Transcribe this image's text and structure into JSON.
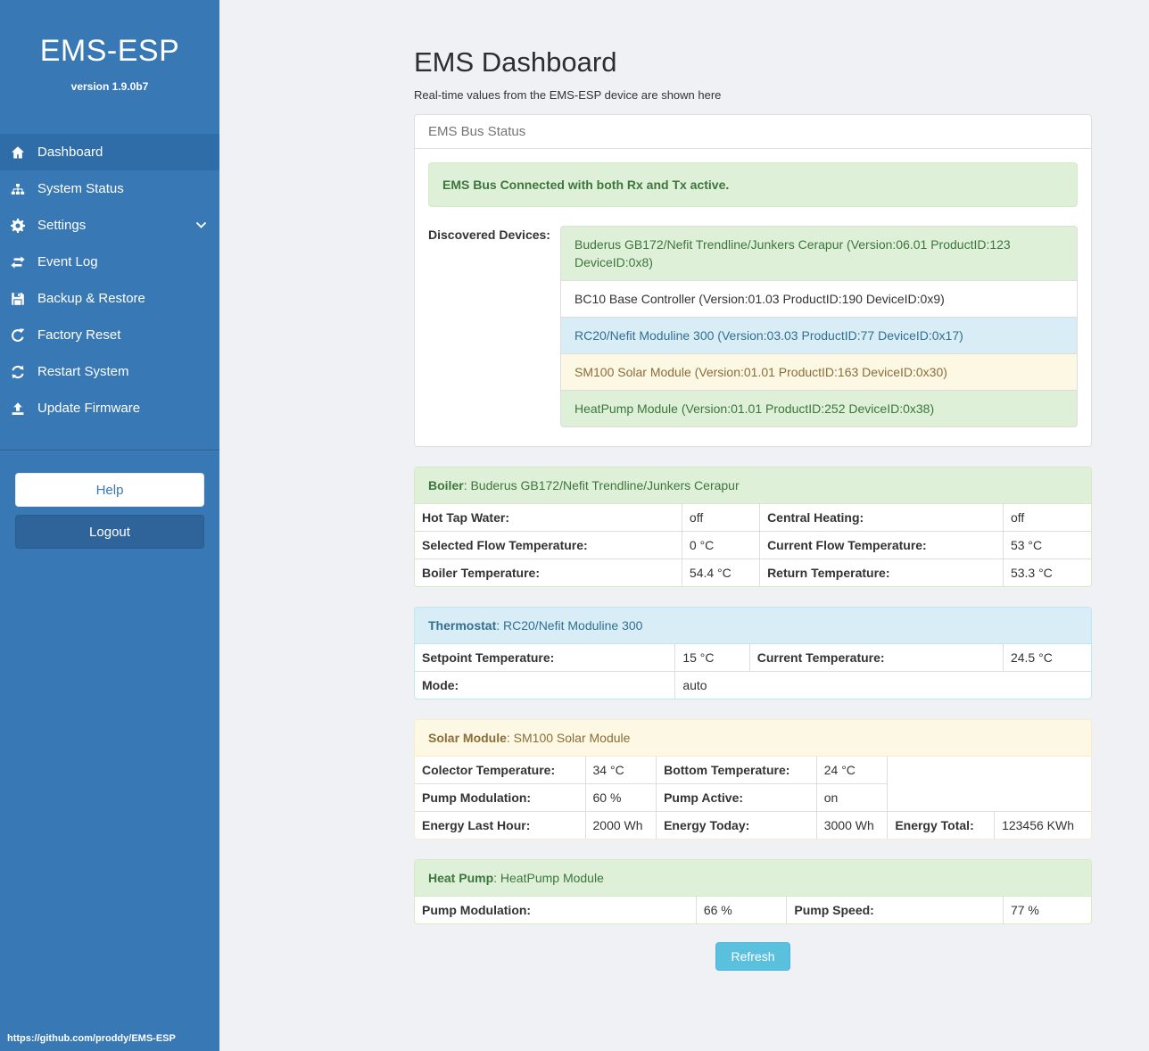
{
  "sidebar": {
    "brand": "EMS-ESP",
    "version": "version 1.9.0b7",
    "items": [
      {
        "label": "Dashboard",
        "icon": "home-icon",
        "active": true
      },
      {
        "label": "System Status",
        "icon": "system-status-icon",
        "active": false
      },
      {
        "label": "Settings",
        "icon": "gear-icon",
        "active": false,
        "chevron": true
      },
      {
        "label": "Event Log",
        "icon": "exchange-icon",
        "active": false
      },
      {
        "label": "Backup & Restore",
        "icon": "save-icon",
        "active": false
      },
      {
        "label": "Factory Reset",
        "icon": "repeat-icon",
        "active": false
      },
      {
        "label": "Restart System",
        "icon": "refresh-icon",
        "active": false
      },
      {
        "label": "Update Firmware",
        "icon": "upload-icon",
        "active": false
      }
    ],
    "help_label": "Help",
    "logout_label": "Logout",
    "footer_link": "https://github.com/proddy/EMS-ESP"
  },
  "header": {
    "title": "EMS Dashboard",
    "subtitle": "Real-time values from the EMS-ESP device are shown here"
  },
  "bus_panel": {
    "heading": "EMS Bus Status",
    "alert": "EMS Bus Connected with both Rx and Tx active.",
    "devices_label": "Discovered Devices:",
    "devices": [
      {
        "text": "Buderus GB172/Nefit Trendline/Junkers Cerapur (Version:06.01 ProductID:123 DeviceID:0x8)",
        "variant": "success"
      },
      {
        "text": "BC10 Base Controller (Version:01.03 ProductID:190 DeviceID:0x9)",
        "variant": "default"
      },
      {
        "text": "RC20/Nefit Moduline 300 (Version:03.03 ProductID:77 DeviceID:0x17)",
        "variant": "info"
      },
      {
        "text": "SM100 Solar Module (Version:01.01 ProductID:163 DeviceID:0x30)",
        "variant": "warning"
      },
      {
        "text": "HeatPump Module (Version:01.01 ProductID:252 DeviceID:0x38)",
        "variant": "success"
      }
    ]
  },
  "panels": [
    {
      "id": "boiler",
      "variant": "success",
      "title": "Boiler",
      "device": "Buderus GB172/Nefit Trendline/Junkers Cerapur",
      "col_widths": [
        "39.5%",
        "11.5%",
        "36%",
        "13%"
      ],
      "rows": [
        [
          {
            "text": "Hot Tap Water:",
            "label": true
          },
          {
            "text": "off"
          },
          {
            "text": "Central Heating:",
            "label": true
          },
          {
            "text": "off"
          }
        ],
        [
          {
            "text": "Selected Flow Temperature:",
            "label": true
          },
          {
            "text": "0 °C"
          },
          {
            "text": "Current Flow Temperature:",
            "label": true
          },
          {
            "text": "53 °C"
          }
        ],
        [
          {
            "text": "Boiler Temperature:",
            "label": true
          },
          {
            "text": "54.4 °C"
          },
          {
            "text": "Return Temperature:",
            "label": true
          },
          {
            "text": "53.3 °C"
          }
        ]
      ]
    },
    {
      "id": "thermostat",
      "variant": "info",
      "title": "Thermostat",
      "device": "RC20/Nefit Moduline 300",
      "col_widths": [
        "38.5%",
        "11%",
        "37.5%",
        "13%"
      ],
      "rows": [
        [
          {
            "text": "Setpoint Temperature:",
            "label": true
          },
          {
            "text": "15 °C"
          },
          {
            "text": "Current Temperature:",
            "label": true
          },
          {
            "text": "24.5 °C"
          }
        ],
        [
          {
            "text": "Mode:",
            "label": true
          },
          {
            "text": "auto",
            "colspan": 3
          }
        ]
      ]
    },
    {
      "id": "solar-module",
      "variant": "warning",
      "title": "Solar Module",
      "device": "SM100 Solar Module",
      "col_widths": [
        "25.2%",
        "10.5%",
        "23.7%",
        "10.5%",
        "15.8%",
        "14.3%"
      ],
      "rows": [
        [
          {
            "text": "Colector Temperature:",
            "label": true
          },
          {
            "text": "34 °C"
          },
          {
            "text": "Bottom Temperature:",
            "label": true
          },
          {
            "text": "24 °C"
          },
          {
            "filler": true,
            "rowspan": 2,
            "colspan": 2
          }
        ],
        [
          {
            "text": "Pump Modulation:",
            "label": true
          },
          {
            "text": "60 %"
          },
          {
            "text": "Pump Active:",
            "label": true
          },
          {
            "text": "on"
          }
        ],
        [
          {
            "text": "Energy Last Hour:",
            "label": true
          },
          {
            "text": "2000 Wh"
          },
          {
            "text": "Energy Today:",
            "label": true
          },
          {
            "text": "3000 Wh"
          },
          {
            "text": "Energy Total:",
            "label": true
          },
          {
            "text": "123456 KWh"
          }
        ]
      ]
    },
    {
      "id": "heat-pump",
      "variant": "success",
      "title": "Heat Pump",
      "device": "HeatPump Module",
      "col_widths": [
        "41.6%",
        "13.4%",
        "32%",
        "13%"
      ],
      "rows": [
        [
          {
            "text": "Pump Modulation:",
            "label": true
          },
          {
            "text": "66 %"
          },
          {
            "text": "Pump Speed:",
            "label": true
          },
          {
            "text": "77 %"
          }
        ]
      ]
    }
  ],
  "refresh_label": "Refresh",
  "colors": {
    "sidebar": "#3878b4",
    "sidebar_active": "#2f6da8",
    "logout_button": "#2f649b",
    "success_bg": "#dff0d8",
    "success_text": "#3c763d",
    "success_border": "#d6e9c6",
    "info_bg": "#d9edf7",
    "info_text": "#31708f",
    "info_border": "#bce8f1",
    "warning_bg": "#fcf8e3",
    "warning_text": "#8a6d3b",
    "warning_border": "#faebcc",
    "refresh_button": "#5bc0de",
    "page_bg": "#eff1f5"
  }
}
